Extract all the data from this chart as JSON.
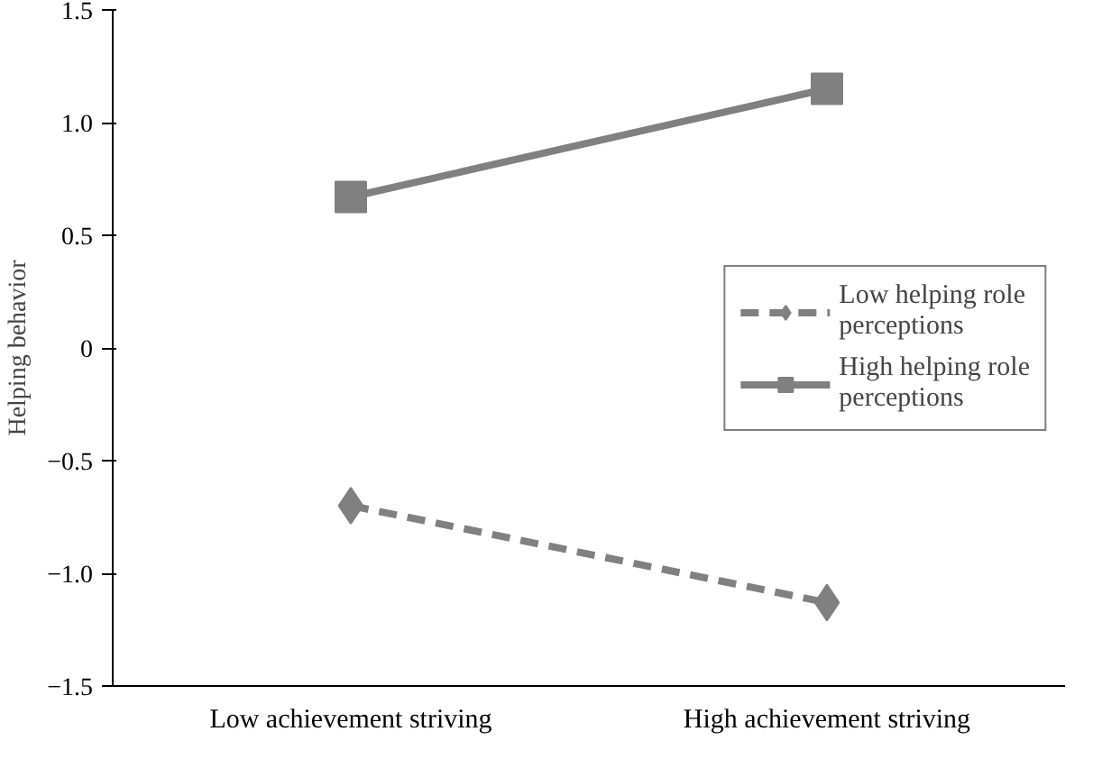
{
  "chart_data": {
    "type": "line",
    "ylabel": "Helping behavior",
    "categories": [
      "Low achievement striving",
      "High achievement striving"
    ],
    "series": [
      {
        "name": "Low helping role perceptions",
        "color": "#808080",
        "values": [
          -0.7,
          -1.13
        ],
        "marker": "diamond",
        "line_style": "dashed"
      },
      {
        "name": "High helping role perceptions",
        "color": "#808080",
        "values": [
          0.67,
          1.15
        ],
        "marker": "square",
        "line_style": "solid"
      }
    ],
    "ylim": [
      -1.5,
      1.5
    ],
    "yticks": [
      {
        "value": -1.5,
        "label": "−1.5"
      },
      {
        "value": -1.0,
        "label": "−1.0"
      },
      {
        "value": -0.5,
        "label": "−0.5"
      },
      {
        "value": 0,
        "label": "0"
      },
      {
        "value": 0.5,
        "label": "0.5"
      },
      {
        "value": 1.0,
        "label": "1.0"
      },
      {
        "value": 1.5,
        "label": "1.5"
      }
    ],
    "grid": false,
    "legend": "right"
  }
}
